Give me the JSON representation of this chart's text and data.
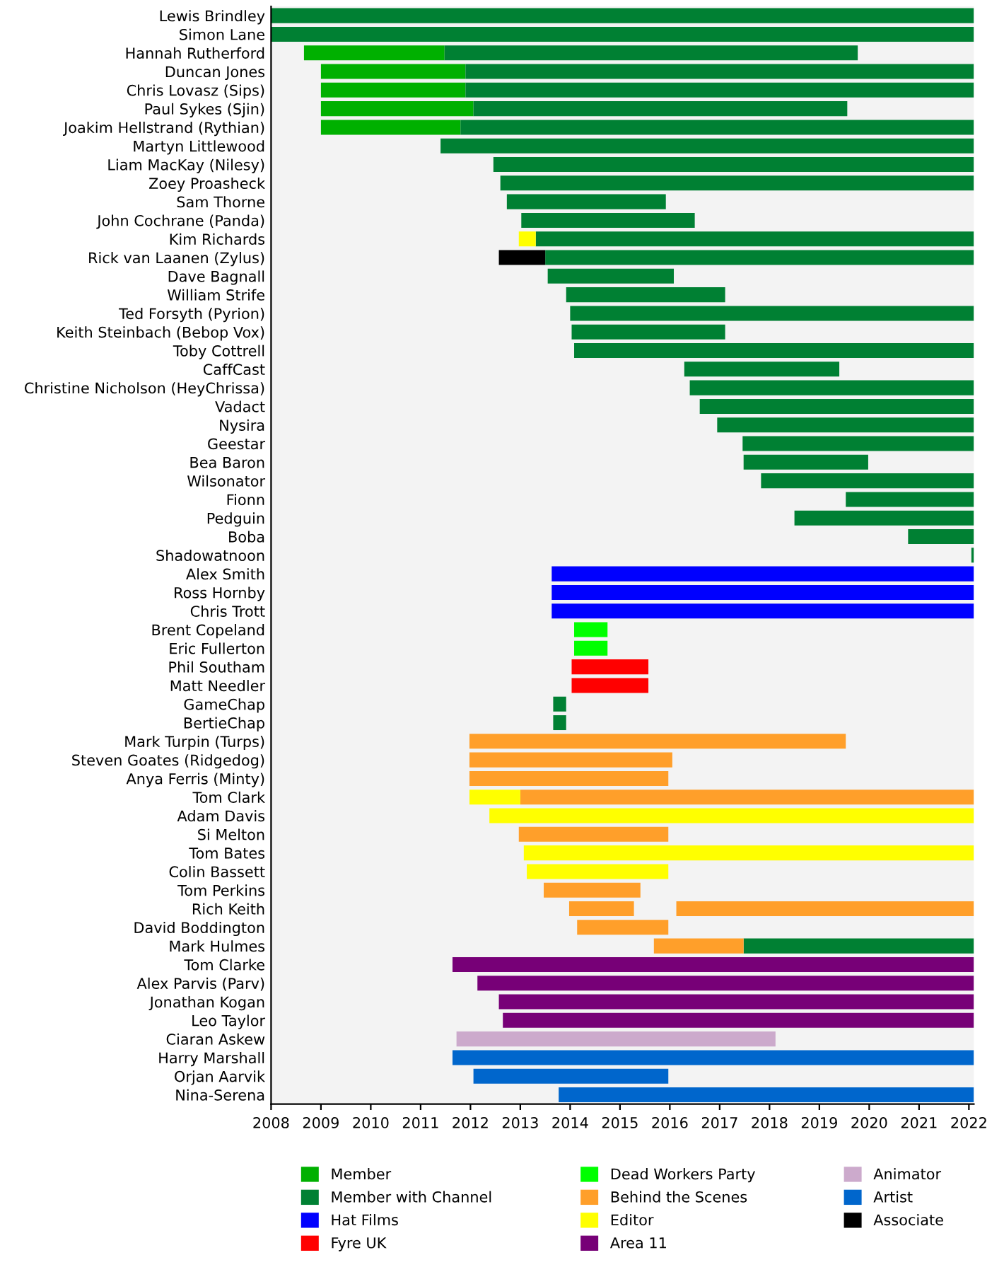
{
  "chart_data": {
    "type": "bar",
    "orientation": "horizontal",
    "categories": [
      "Lewis Brindley",
      "Simon Lane",
      "Hannah Rutherford",
      "Duncan Jones",
      "Chris Lovasz (Sips)",
      "Paul Sykes (Sjin)",
      "Joakim Hellstrand (Rythian)",
      "Martyn Littlewood",
      "Liam MacKay (Nilesy)",
      "Zoey Proasheck",
      "Sam Thorne",
      "John Cochrane (Panda)",
      "Kim Richards",
      "Rick van Laanen (Zylus)",
      "Dave Bagnall",
      "William Strife",
      "Ted Forsyth (Pyrion)",
      "Keith Steinbach (Bebop Vox)",
      "Toby Cottrell",
      "CaffCast",
      "Christine Nicholson (HeyChrissa)",
      "Vadact",
      "Nysira",
      "Geestar",
      "Bea Baron",
      "Wilsonator",
      "Fionn",
      "Pedguin",
      "Boba",
      "Shadowatnoon",
      "Alex Smith",
      "Ross Hornby",
      "Chris Trott",
      "Brent Copeland",
      "Eric Fullerton",
      "Phil Southam",
      "Matt Needler",
      "GameChap",
      "BertieChap",
      "Mark Turpin (Turps)",
      "Steven Goates (Ridgedog)",
      "Anya Ferris (Minty)",
      "Tom Clark",
      "Adam Davis",
      "Si Melton",
      "Tom Bates",
      "Colin Bassett",
      "Tom Perkins",
      "Rich Keith",
      "David Boddington",
      "Mark Hulmes",
      "Tom Clarke",
      "Alex Parvis (Parv)",
      "Jonathan Kogan",
      "Leo Taylor",
      "Ciaran Askew",
      "Harry Marshall",
      "Orjan Aarvik",
      "Nina-Serena"
    ],
    "series": [
      {
        "name": "Member",
        "color": "#00b000",
        "values": [
          null,
          null,
          2.82,
          2.9,
          2.9,
          3.06,
          2.8,
          null,
          null,
          null,
          null,
          null,
          null,
          null,
          null,
          null,
          null,
          null,
          null,
          null,
          null,
          null,
          null,
          null,
          null,
          null,
          null,
          null,
          null,
          null,
          null,
          null,
          null,
          null,
          null,
          null,
          null,
          null,
          null,
          null,
          null,
          null,
          null,
          null,
          null,
          null,
          null,
          null,
          null,
          null,
          null,
          null,
          null,
          null,
          null,
          null,
          null,
          null,
          null
        ],
        "base": [
          null,
          null,
          2008.66,
          2009,
          2009,
          2009,
          2009,
          null,
          null,
          null,
          null,
          null,
          null,
          null,
          null,
          null,
          null,
          null,
          null,
          null,
          null,
          null,
          null,
          null,
          null,
          null,
          null,
          null,
          null,
          null,
          null,
          null,
          null,
          null,
          null,
          null,
          null,
          null,
          null,
          null,
          null,
          null,
          null,
          null,
          null,
          null,
          null,
          null,
          null,
          null,
          null,
          null,
          null,
          null,
          null,
          null,
          null,
          null,
          null
        ]
      },
      {
        "name": "Member with Channel",
        "color": "#008033",
        "values": [
          14.1,
          14.1,
          8.29,
          10.2,
          10.2,
          7.5,
          10.3,
          10.7,
          9.64,
          9.5,
          3.19,
          3.48,
          8.79,
          8.6,
          2.53,
          3.19,
          8.1,
          3.08,
          8.02,
          3.11,
          5.7,
          5.5,
          5.15,
          4.64,
          2.5,
          4.27,
          2.57,
          3.6,
          1.32,
          0.05,
          null,
          null,
          null,
          null,
          null,
          null,
          null,
          0.26,
          0.26,
          null,
          null,
          null,
          null,
          null,
          null,
          null,
          null,
          null,
          null,
          null,
          4.62,
          null,
          null,
          null,
          null,
          null,
          null,
          null,
          null
        ],
        "base": [
          2008,
          2008,
          2011.48,
          2011.9,
          2011.9,
          2012.06,
          2011.8,
          2011.4,
          2012.46,
          2012.6,
          2012.73,
          2013.02,
          2013.31,
          2013.5,
          2013.55,
          2013.92,
          2014.0,
          2014.03,
          2014.08,
          2016.29,
          2016.4,
          2016.6,
          2016.95,
          2017.46,
          2017.48,
          2017.83,
          2019.53,
          2018.5,
          2020.78,
          2022.05,
          null,
          null,
          null,
          null,
          null,
          null,
          null,
          2013.66,
          2013.66,
          null,
          null,
          null,
          null,
          null,
          null,
          null,
          null,
          null,
          null,
          null,
          2017.48,
          null,
          null,
          null,
          null,
          null,
          null,
          null,
          null
        ]
      },
      {
        "name": "Hat Films",
        "color": "#0000ff",
        "values": [
          null,
          null,
          null,
          null,
          null,
          null,
          null,
          null,
          null,
          null,
          null,
          null,
          null,
          null,
          null,
          null,
          null,
          null,
          null,
          null,
          null,
          null,
          null,
          null,
          null,
          null,
          null,
          null,
          null,
          null,
          8.47,
          8.47,
          8.47,
          null,
          null,
          null,
          null,
          null,
          null,
          null,
          null,
          null,
          null,
          null,
          null,
          null,
          null,
          null,
          null,
          null,
          null,
          null,
          null,
          null,
          null,
          null,
          null,
          null,
          null
        ],
        "base": [
          null,
          null,
          null,
          null,
          null,
          null,
          null,
          null,
          null,
          null,
          null,
          null,
          null,
          null,
          null,
          null,
          null,
          null,
          null,
          null,
          null,
          null,
          null,
          null,
          null,
          null,
          null,
          null,
          null,
          null,
          2013.63,
          2013.63,
          2013.63,
          null,
          null,
          null,
          null,
          null,
          null,
          null,
          null,
          null,
          null,
          null,
          null,
          null,
          null,
          null,
          null,
          null,
          null,
          null,
          null,
          null,
          null,
          null,
          null,
          null,
          null
        ]
      },
      {
        "name": "Fyre UK",
        "color": "#ff0000",
        "values": [
          null,
          null,
          null,
          null,
          null,
          null,
          null,
          null,
          null,
          null,
          null,
          null,
          null,
          null,
          null,
          null,
          null,
          null,
          null,
          null,
          null,
          null,
          null,
          null,
          null,
          null,
          null,
          null,
          null,
          null,
          null,
          null,
          null,
          null,
          null,
          1.54,
          1.54,
          null,
          null,
          null,
          null,
          null,
          null,
          null,
          null,
          null,
          null,
          null,
          null,
          null,
          null,
          null,
          null,
          null,
          null,
          null,
          null,
          null,
          null
        ],
        "base": [
          null,
          null,
          null,
          null,
          null,
          null,
          null,
          null,
          null,
          null,
          null,
          null,
          null,
          null,
          null,
          null,
          null,
          null,
          null,
          null,
          null,
          null,
          null,
          null,
          null,
          null,
          null,
          null,
          null,
          null,
          null,
          null,
          null,
          null,
          null,
          2014.03,
          2014.03,
          null,
          null,
          null,
          null,
          null,
          null,
          null,
          null,
          null,
          null,
          null,
          null,
          null,
          null,
          null,
          null,
          null,
          null,
          null,
          null,
          null,
          null
        ]
      },
      {
        "name": "Dead Workers Party",
        "color": "#00ff00",
        "values": [
          null,
          null,
          null,
          null,
          null,
          null,
          null,
          null,
          null,
          null,
          null,
          null,
          null,
          null,
          null,
          null,
          null,
          null,
          null,
          null,
          null,
          null,
          null,
          null,
          null,
          null,
          null,
          null,
          null,
          null,
          null,
          null,
          null,
          0.67,
          0.67,
          null,
          null,
          null,
          null,
          null,
          null,
          null,
          null,
          null,
          null,
          null,
          null,
          null,
          null,
          null,
          null,
          null,
          null,
          null,
          null,
          null,
          null,
          null,
          null
        ],
        "base": [
          null,
          null,
          null,
          null,
          null,
          null,
          null,
          null,
          null,
          null,
          null,
          null,
          null,
          null,
          null,
          null,
          null,
          null,
          null,
          null,
          null,
          null,
          null,
          null,
          null,
          null,
          null,
          null,
          null,
          null,
          null,
          null,
          null,
          2014.08,
          2014.08,
          null,
          null,
          null,
          null,
          null,
          null,
          null,
          null,
          null,
          null,
          null,
          null,
          null,
          null,
          null,
          null,
          null,
          null,
          null,
          null,
          null,
          null,
          null,
          null
        ]
      },
      {
        "name": "Behind the Scenes",
        "color": "#ff9f2a",
        "values": [
          null,
          null,
          null,
          null,
          null,
          null,
          null,
          null,
          null,
          null,
          null,
          null,
          null,
          null,
          null,
          null,
          null,
          null,
          null,
          null,
          null,
          null,
          null,
          null,
          null,
          null,
          null,
          null,
          null,
          null,
          null,
          null,
          null,
          null,
          null,
          null,
          null,
          null,
          null,
          7.55,
          4.07,
          3.99,
          9.1,
          null,
          3.0,
          null,
          null,
          1.94,
          1.3,
          1.83,
          1.8,
          null,
          null,
          null,
          null,
          null,
          null,
          null,
          null
        ],
        "base": [
          null,
          null,
          null,
          null,
          null,
          null,
          null,
          null,
          null,
          null,
          null,
          null,
          null,
          null,
          null,
          null,
          null,
          null,
          null,
          null,
          null,
          null,
          null,
          null,
          null,
          null,
          null,
          null,
          null,
          null,
          null,
          null,
          null,
          null,
          null,
          null,
          null,
          null,
          null,
          2011.98,
          2011.98,
          2011.98,
          2013.0,
          null,
          2012.97,
          null,
          null,
          2013.47,
          2013.98,
          2014.14,
          2015.68,
          null,
          null,
          null,
          null,
          null,
          null,
          null,
          null
        ]
      },
      {
        "name": "Editor",
        "color": "#ffff00",
        "values": [
          null,
          null,
          null,
          null,
          null,
          null,
          null,
          null,
          null,
          null,
          null,
          null,
          0.34,
          null,
          null,
          null,
          null,
          null,
          null,
          null,
          null,
          null,
          null,
          null,
          null,
          null,
          null,
          null,
          null,
          null,
          null,
          null,
          null,
          null,
          null,
          null,
          null,
          null,
          null,
          null,
          null,
          null,
          1.02,
          9.72,
          null,
          9.03,
          2.84,
          null,
          null,
          null,
          null,
          null,
          null,
          null,
          null,
          null,
          null,
          null,
          null
        ],
        "base": [
          null,
          null,
          null,
          null,
          null,
          null,
          null,
          null,
          null,
          null,
          null,
          null,
          2012.97,
          null,
          null,
          null,
          null,
          null,
          null,
          null,
          null,
          null,
          null,
          null,
          null,
          null,
          null,
          null,
          null,
          null,
          null,
          null,
          null,
          null,
          null,
          null,
          null,
          null,
          null,
          null,
          null,
          null,
          2011.98,
          2012.38,
          null,
          2013.07,
          2013.13,
          null,
          null,
          null,
          null,
          null,
          null,
          null,
          null,
          null,
          null,
          null,
          null
        ]
      },
      {
        "name": "Area 11",
        "color": "#770077",
        "values": [
          null,
          null,
          null,
          null,
          null,
          null,
          null,
          null,
          null,
          null,
          null,
          null,
          null,
          null,
          null,
          null,
          null,
          null,
          null,
          null,
          null,
          null,
          null,
          null,
          null,
          null,
          null,
          null,
          null,
          null,
          null,
          null,
          null,
          null,
          null,
          null,
          null,
          null,
          null,
          null,
          null,
          null,
          null,
          null,
          null,
          null,
          null,
          null,
          null,
          null,
          null,
          10.46,
          9.96,
          9.53,
          9.45,
          null,
          null,
          null,
          null
        ],
        "base": [
          null,
          null,
          null,
          null,
          null,
          null,
          null,
          null,
          null,
          null,
          null,
          null,
          null,
          null,
          null,
          null,
          null,
          null,
          null,
          null,
          null,
          null,
          null,
          null,
          null,
          null,
          null,
          null,
          null,
          null,
          null,
          null,
          null,
          null,
          null,
          null,
          null,
          null,
          null,
          null,
          null,
          null,
          null,
          null,
          null,
          null,
          null,
          null,
          null,
          null,
          null,
          2011.64,
          2012.14,
          2012.57,
          2012.65,
          null,
          null,
          null,
          null
        ]
      },
      {
        "name": "Animator",
        "color": "#ccaacc",
        "values": [
          null,
          null,
          null,
          null,
          null,
          null,
          null,
          null,
          null,
          null,
          null,
          null,
          null,
          null,
          null,
          null,
          null,
          null,
          null,
          null,
          null,
          null,
          null,
          null,
          null,
          null,
          null,
          null,
          null,
          null,
          null,
          null,
          null,
          null,
          null,
          null,
          null,
          null,
          null,
          null,
          null,
          null,
          null,
          null,
          null,
          null,
          null,
          null,
          null,
          null,
          null,
          null,
          null,
          null,
          null,
          6.4,
          null,
          null,
          null
        ],
        "base": [
          null,
          null,
          null,
          null,
          null,
          null,
          null,
          null,
          null,
          null,
          null,
          null,
          null,
          null,
          null,
          null,
          null,
          null,
          null,
          null,
          null,
          null,
          null,
          null,
          null,
          null,
          null,
          null,
          null,
          null,
          null,
          null,
          null,
          null,
          null,
          null,
          null,
          null,
          null,
          null,
          null,
          null,
          null,
          null,
          null,
          null,
          null,
          null,
          null,
          null,
          null,
          null,
          null,
          null,
          null,
          2011.72,
          null,
          null,
          null
        ]
      },
      {
        "name": "Artist",
        "color": "#0066cc",
        "values": [
          null,
          null,
          null,
          null,
          null,
          null,
          null,
          null,
          null,
          null,
          null,
          null,
          null,
          null,
          null,
          null,
          null,
          null,
          null,
          null,
          null,
          null,
          null,
          null,
          null,
          null,
          null,
          null,
          null,
          null,
          null,
          null,
          null,
          null,
          null,
          null,
          null,
          null,
          null,
          null,
          null,
          null,
          null,
          null,
          null,
          null,
          null,
          null,
          null,
          null,
          null,
          null,
          null,
          null,
          null,
          null,
          10.46,
          3.91,
          8.33
        ],
        "base": [
          null,
          null,
          null,
          null,
          null,
          null,
          null,
          null,
          null,
          null,
          null,
          null,
          null,
          null,
          null,
          null,
          null,
          null,
          null,
          null,
          null,
          null,
          null,
          null,
          null,
          null,
          null,
          null,
          null,
          null,
          null,
          null,
          null,
          null,
          null,
          null,
          null,
          null,
          null,
          null,
          null,
          null,
          null,
          null,
          null,
          null,
          null,
          null,
          null,
          null,
          null,
          null,
          null,
          null,
          null,
          null,
          2011.64,
          2012.06,
          2013.77
        ]
      },
      {
        "name": "Associate",
        "color": "#000000",
        "values": [
          null,
          null,
          null,
          null,
          null,
          null,
          null,
          null,
          null,
          null,
          null,
          null,
          null,
          0.93,
          null,
          null,
          null,
          null,
          null,
          null,
          null,
          null,
          null,
          null,
          null,
          null,
          null,
          null,
          null,
          null,
          null,
          null,
          null,
          null,
          null,
          null,
          null,
          null,
          null,
          null,
          null,
          null,
          null,
          null,
          null,
          null,
          null,
          null,
          null,
          null,
          null,
          null,
          null,
          null,
          null,
          null,
          null,
          null,
          null
        ],
        "base": [
          null,
          null,
          null,
          null,
          null,
          null,
          null,
          null,
          null,
          null,
          null,
          null,
          null,
          2012.57,
          null,
          null,
          null,
          null,
          null,
          null,
          null,
          null,
          null,
          null,
          null,
          null,
          null,
          null,
          null,
          null,
          null,
          null,
          null,
          null,
          null,
          null,
          null,
          null,
          null,
          null,
          null,
          null,
          null,
          null,
          null,
          null,
          null,
          null,
          null,
          null,
          null,
          null,
          null,
          null,
          null,
          null,
          null,
          null,
          null
        ]
      },
      {
        "color": "#ff9f2a",
        "values": [
          null,
          null,
          null,
          null,
          null,
          null,
          null,
          null,
          null,
          null,
          null,
          null,
          null,
          null,
          null,
          null,
          null,
          null,
          null,
          null,
          null,
          null,
          null,
          null,
          null,
          null,
          null,
          null,
          null,
          null,
          null,
          null,
          null,
          null,
          null,
          null,
          null,
          null,
          null,
          null,
          null,
          null,
          null,
          null,
          null,
          null,
          null,
          null,
          5.97,
          null,
          null,
          null,
          null,
          null,
          null,
          null,
          null,
          null,
          null
        ],
        "base": [
          null,
          null,
          null,
          null,
          null,
          null,
          null,
          null,
          null,
          null,
          null,
          null,
          null,
          null,
          null,
          null,
          null,
          null,
          null,
          null,
          null,
          null,
          null,
          null,
          null,
          null,
          null,
          null,
          null,
          null,
          null,
          null,
          null,
          null,
          null,
          null,
          null,
          null,
          null,
          null,
          null,
          null,
          null,
          null,
          null,
          null,
          null,
          null,
          2016.13,
          null,
          null,
          null,
          null,
          null,
          null,
          null,
          null,
          null,
          null
        ]
      }
    ],
    "xlim": [
      2008,
      2022.1
    ],
    "xticks": [
      2008,
      2009,
      2010,
      2011,
      2012,
      2013,
      2014,
      2015,
      2016,
      2017,
      2018,
      2019,
      2020,
      2021,
      2022
    ],
    "grid": false,
    "legend": "bottom"
  }
}
